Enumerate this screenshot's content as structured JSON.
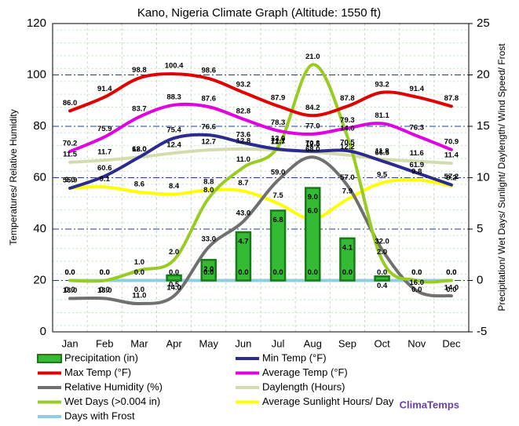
{
  "chart_data": {
    "type": "combo",
    "title": "Kano, Nigeria Climate Graph (Altitude: 1550 ft)",
    "y_label": "Temperatures/ Relative Humidity",
    "y2_label": "Precipitation/ Wet Days/ Sunlight/ Daylength/ Wind Speed/ Frost",
    "brand": "ClimaTemps",
    "categories": [
      "Jan",
      "Feb",
      "Mar",
      "Apr",
      "May",
      "Jun",
      "Jul",
      "Aug",
      "Sep",
      "Oct",
      "Nov",
      "Dec"
    ],
    "ylim": [
      0,
      120
    ],
    "yticks": [
      0,
      20,
      40,
      60,
      80,
      100,
      120
    ],
    "y2lim": [
      -5,
      25
    ],
    "y2ticks": [
      -5,
      0,
      5,
      10,
      15,
      20,
      25
    ],
    "grid": true,
    "series": [
      {
        "name": "Precipitation (in)",
        "kind": "bar",
        "axis": "y2",
        "color": "#33bb33",
        "values": [
          0,
          0,
          0,
          0.5,
          2,
          4.7,
          6.8,
          9,
          4.1,
          0.4,
          0,
          0
        ],
        "value_labels": [
          "0.0",
          "0.0",
          "0.0",
          "0.5",
          "2.0",
          "4.7",
          "6.8",
          "9.0",
          "4.1",
          "0.4",
          "0.0",
          "0.0"
        ]
      },
      {
        "name": "Min Temp (°F)",
        "kind": "line",
        "axis": "y",
        "color": "#2b2b8f",
        "values": [
          55.9,
          60.6,
          68,
          75.4,
          76.6,
          73.6,
          71.1,
          70.3,
          70.5,
          66.5,
          61.9,
          57.2
        ],
        "value_labels": [
          "55.9",
          "60.6",
          "68.0",
          "75.4",
          "76.6",
          "73.6",
          "71.1",
          "70.3",
          "70.5",
          "66.5",
          "61.9",
          "57.2"
        ]
      },
      {
        "name": "Max Temp (°F)",
        "kind": "line",
        "axis": "y",
        "color": "#e00000",
        "values": [
          86,
          91.4,
          98.8,
          100.4,
          98.6,
          93.2,
          87.9,
          84.2,
          87.8,
          93.2,
          91.4,
          87.8
        ],
        "value_labels": [
          "86.0",
          "91.4",
          "98.8",
          "100.4",
          "98.6",
          "93.2",
          "87.9",
          "84.2",
          "87.8",
          "93.2",
          "91.4",
          "87.8"
        ]
      },
      {
        "name": "Average Temp (°F)",
        "kind": "line",
        "axis": "y",
        "color": "#e000e0",
        "values": [
          70.2,
          75.9,
          83.7,
          88.3,
          87.6,
          82.8,
          78.3,
          77,
          79.3,
          81.1,
          76.3,
          70.9
        ],
        "value_labels": [
          "70.2",
          "75.9",
          "83.7",
          "88.3",
          "87.6",
          "82.8",
          "78.3",
          "77.0",
          "79.3",
          "81.1",
          "76.3",
          "70.9"
        ]
      },
      {
        "name": "Relative Humidity (%)",
        "kind": "line",
        "axis": "y",
        "color": "#707070",
        "values": [
          13,
          13,
          11,
          14,
          33,
          43,
          59,
          68,
          57,
          32,
          16,
          14
        ],
        "value_labels": [
          "13.0",
          "13.0",
          "11.0",
          "14.0",
          "33.0",
          "43.0",
          "59.0",
          "68.0",
          "57.0",
          "32.0",
          "16.0",
          "14.0"
        ]
      },
      {
        "name": "Daylength (Hours)",
        "kind": "line",
        "axis": "y2",
        "color": "#d4dcae",
        "values": [
          11.5,
          11.7,
          12,
          12.4,
          12.7,
          12.8,
          12.7,
          12.5,
          12.2,
          11.8,
          11.6,
          11.4
        ],
        "value_labels": [
          "11.5",
          "11.7",
          "12.0",
          "12.4",
          "12.7",
          "12.8",
          "12.7",
          "12.5",
          "12.2",
          "11.8",
          "11.6",
          "11.4"
        ]
      },
      {
        "name": "Wet Days (>0.004 in)",
        "kind": "line",
        "axis": "y2",
        "color": "#99cc22",
        "values": [
          0,
          0,
          1,
          2,
          8,
          11,
          13,
          21,
          14,
          2,
          0,
          0
        ],
        "value_labels": [
          "0.0",
          "0.0",
          "1.0",
          "2.0",
          "8.0",
          "11.0",
          "13.0",
          "21.0",
          "14.0",
          "2.0",
          "0.0",
          "0.0"
        ]
      },
      {
        "name": "Average Sunlight Hours/ Day",
        "kind": "line",
        "axis": "y2",
        "color": "#ffff00",
        "values": [
          9,
          9.1,
          8.6,
          8.4,
          8.8,
          8.7,
          7.5,
          6,
          7.9,
          9.5,
          9.8,
          9.2
        ],
        "value_labels": [
          "9.0",
          "9.1",
          "8.6",
          "8.4",
          "8.8",
          "8.7",
          "7.5",
          "6.0",
          "7.9",
          "9.5",
          "9.8",
          "9.2"
        ]
      },
      {
        "name": "Days with Frost",
        "kind": "line",
        "axis": "y2",
        "color": "#8ecfdf",
        "values": [
          0,
          0,
          0,
          0,
          0,
          0,
          0,
          0,
          0,
          0,
          0,
          0
        ],
        "value_labels": [
          "0.0",
          "0.0",
          "0.0",
          "0.0",
          "0.0",
          "0.0",
          "0.0",
          "0.0",
          "0.0",
          "0.0",
          "0.0",
          "0.0"
        ]
      }
    ]
  }
}
